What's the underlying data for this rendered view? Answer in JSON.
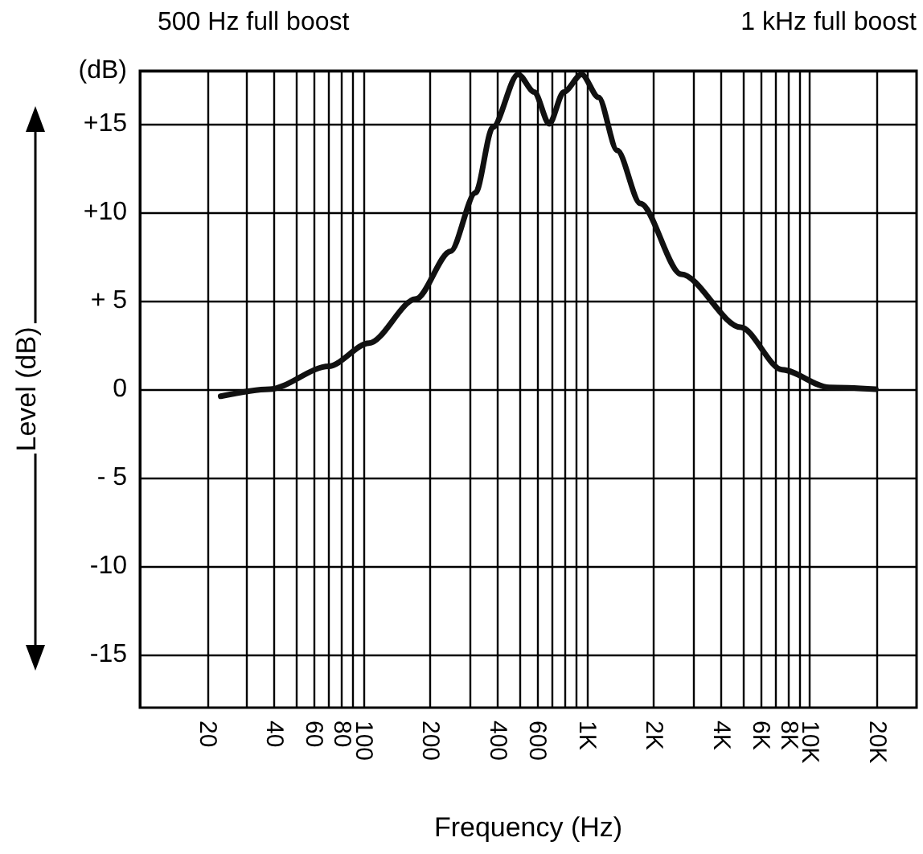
{
  "chart_data": {
    "type": "line",
    "xlabel": "Frequency (Hz)",
    "ylabel": "Level (dB)",
    "annotations": [
      "500 Hz full boost",
      "1 kHz full boost"
    ],
    "log": "x",
    "grid": true,
    "marker": "none",
    "line_style": "solid",
    "xlim": [
      10,
      30000
    ],
    "xticks": [
      20,
      {
        "value": 30,
        "label": null
      },
      40,
      {
        "value": 50,
        "label": null
      },
      60,
      {
        "value": 70,
        "label": null
      },
      80,
      {
        "value": 90,
        "label": null
      },
      100,
      200,
      {
        "value": 300,
        "label": null
      },
      400,
      {
        "value": 500,
        "label": null
      },
      600,
      {
        "value": 700,
        "label": null
      },
      {
        "value": 800,
        "label": null
      },
      {
        "value": 900,
        "label": null
      },
      {
        "value": 1000,
        "label": "1K"
      },
      {
        "value": 2000,
        "label": "2K"
      },
      {
        "value": 3000,
        "label": null
      },
      {
        "value": 4000,
        "label": "4K"
      },
      {
        "value": 5000,
        "label": null
      },
      {
        "value": 6000,
        "label": "6K"
      },
      {
        "value": 7000,
        "label": null
      },
      {
        "value": 8000,
        "label": "8K"
      },
      {
        "value": 9000,
        "label": null
      },
      {
        "value": 10000,
        "label": "10K"
      },
      {
        "value": 20000,
        "label": "20K"
      }
    ],
    "ylim": [
      -18,
      18
    ],
    "yticks": [
      {
        "value": -15,
        "label": "-15"
      },
      {
        "value": -10,
        "label": "-10"
      },
      {
        "value": -5,
        "label": "- 5"
      },
      0,
      {
        "value": 5,
        "label": "+ 5"
      },
      {
        "value": 10,
        "label": "+10"
      },
      {
        "value": 15,
        "label": "+15"
      },
      {
        "value": 18,
        "label": "(dB)"
      }
    ],
    "x": [
      23,
      38,
      70,
      106,
      172,
      246,
      318,
      380,
      493,
      583,
      680,
      790,
      950,
      1130,
      1370,
      1740,
      2650,
      4900,
      7500,
      12200,
      19700
    ],
    "series": [
      {
        "color": "#111111",
        "values": [
          -0.4,
          0,
          1.3,
          2.6,
          5.1,
          7.8,
          11.1,
          14.8,
          17.8,
          16.8,
          15,
          16.8,
          17.8,
          16.5,
          13.5,
          10.5,
          6.5,
          3.5,
          1.1,
          0.1,
          0
        ]
      }
    ]
  }
}
